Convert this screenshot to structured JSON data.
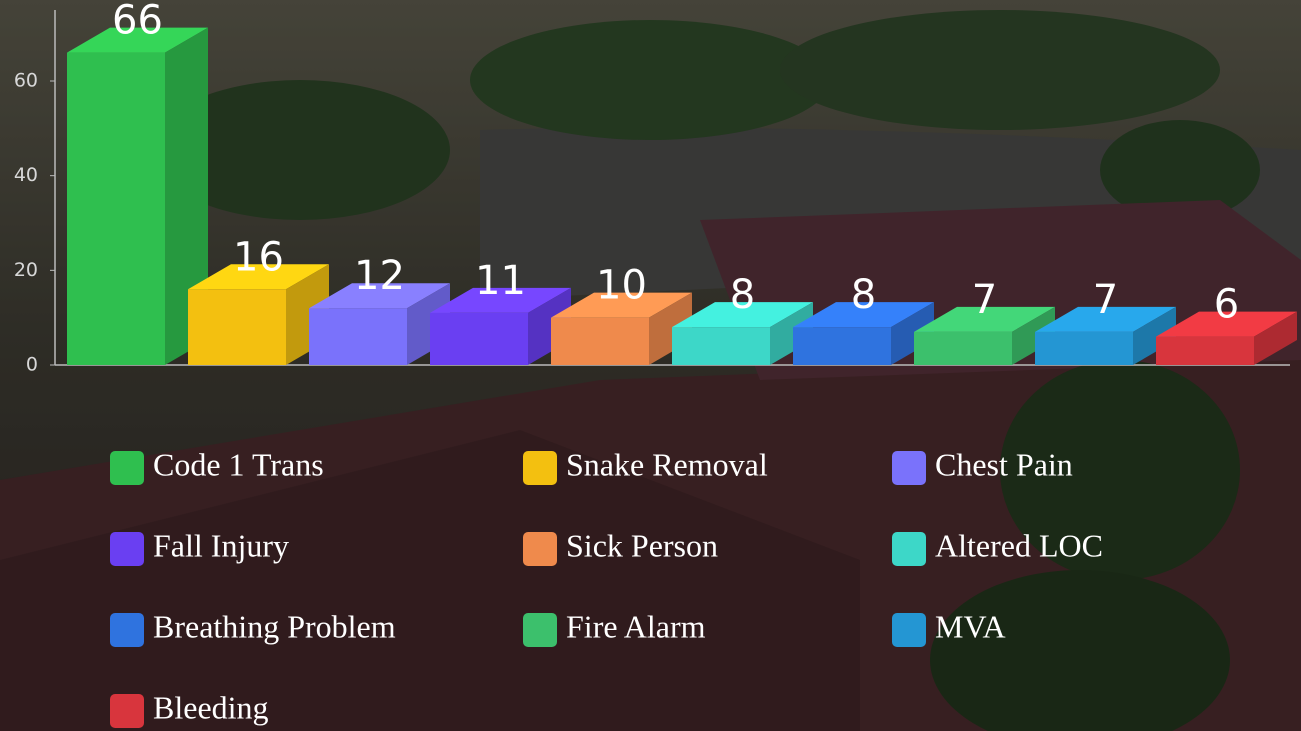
{
  "chart_data": {
    "type": "bar3d",
    "categories": [
      "Code 1 Trans",
      "Snake Removal",
      "Chest Pain",
      "Fall Injury",
      "Sick Person",
      "Altered LOC",
      "Breathing Problem",
      "Fire Alarm",
      "MVA",
      "Bleeding"
    ],
    "values": [
      66,
      16,
      12,
      11,
      10,
      8,
      8,
      7,
      7,
      6
    ],
    "colors": [
      "#2fbf4f",
      "#f3c010",
      "#7a72fb",
      "#6a3ff2",
      "#ef8a4c",
      "#3dd7c8",
      "#2f73df",
      "#3cc06c",
      "#2496d3",
      "#d8353d"
    ],
    "ylim": [
      0,
      75
    ],
    "yticks": [
      0,
      20,
      40,
      60
    ]
  }
}
